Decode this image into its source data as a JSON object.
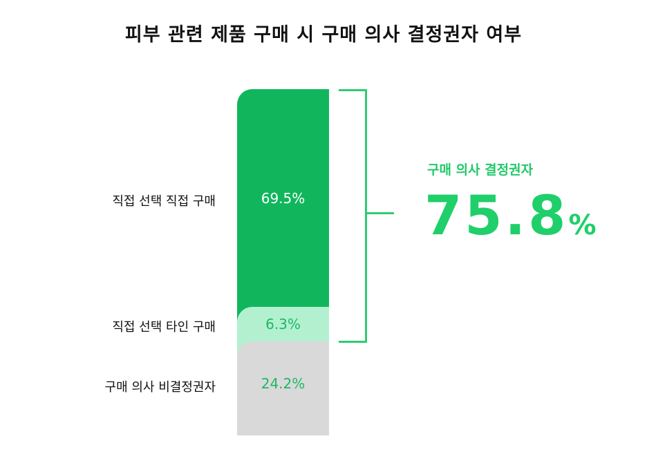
{
  "chart_data": {
    "type": "bar",
    "title": "피부 관련 제품 구매 시 구매 의사 결정권자 여부",
    "categories": [
      "직접 선택 직접 구매",
      "직접 선택 타인 구매",
      "구매 의사 비결정권자"
    ],
    "values": [
      69.5,
      6.3,
      24.2
    ],
    "data_labels": [
      "69.5%",
      "6.3%",
      "24.2%"
    ],
    "colors": [
      "#11b65c",
      "#b3f0cf",
      "#d9d9d9"
    ],
    "label_colors": [
      "#ffffff",
      "#1db866",
      "#1db866"
    ],
    "stacked": true,
    "bracket_color": "#2ecc71",
    "summary": {
      "label": "구매 의사 결정권자",
      "value": "75.8",
      "unit": "%"
    }
  }
}
